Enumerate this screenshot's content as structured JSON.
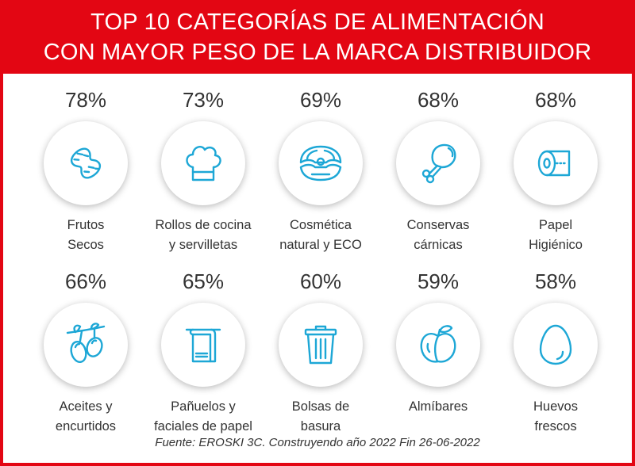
{
  "header": {
    "line1": "TOP 10 CATEGORÍAS DE ALIMENTACIÓN",
    "line2": "CON MAYOR PESO DE LA MARCA DISTRIBUIDOR"
  },
  "colors": {
    "accent": "#e30613",
    "icon": "#1da7d6",
    "text": "#333333"
  },
  "categories": [
    {
      "pct": "78%",
      "label1": "Frutos",
      "label2": "Secos",
      "icon": "peanut-icon"
    },
    {
      "pct": "73%",
      "label1": "Rollos de cocina",
      "label2": "y servilletas",
      "icon": "chef-hat-icon"
    },
    {
      "pct": "69%",
      "label1": "Cosmética",
      "label2": "natural y ECO",
      "icon": "oyster-pearl-icon"
    },
    {
      "pct": "68%",
      "label1": "Conservas",
      "label2": "cárnicas",
      "icon": "chicken-leg-icon"
    },
    {
      "pct": "68%",
      "label1": "Papel",
      "label2": "Higiénico",
      "icon": "toilet-paper-icon"
    },
    {
      "pct": "66%",
      "label1": "Aceites y",
      "label2": "encurtidos",
      "icon": "olives-icon"
    },
    {
      "pct": "65%",
      "label1": "Pañuelos y",
      "label2": "faciales de papel",
      "icon": "towel-icon"
    },
    {
      "pct": "60%",
      "label1": "Bolsas de",
      "label2": "basura",
      "icon": "trash-bin-icon"
    },
    {
      "pct": "59%",
      "label1": "Almíbares",
      "label2": "",
      "icon": "peach-icon"
    },
    {
      "pct": "58%",
      "label1": "Huevos",
      "label2": "frescos",
      "icon": "egg-icon"
    }
  ],
  "source": "Fuente: EROSKI 3C. Construyendo año 2022 Fin 26-06-2022"
}
